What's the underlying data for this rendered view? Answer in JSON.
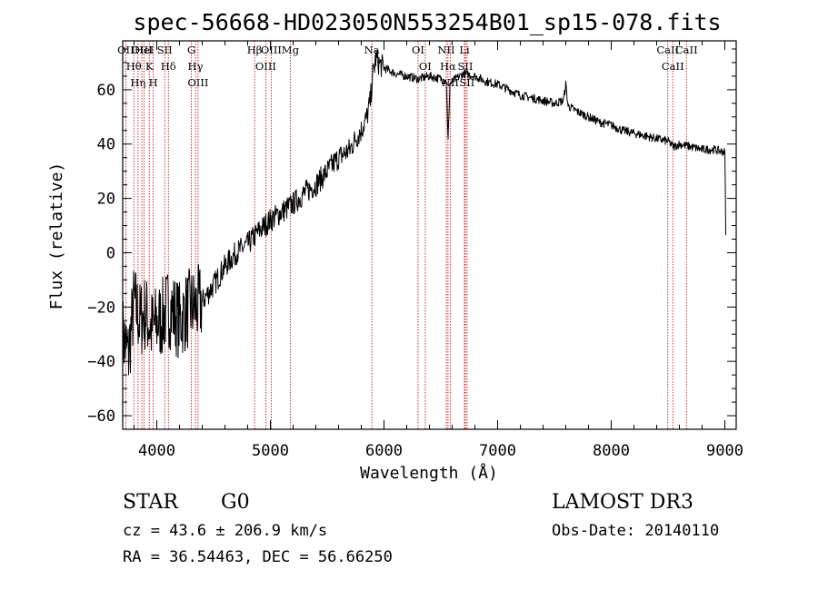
{
  "chart_data": {
    "type": "line",
    "title": "spec-56668-HD023050N553254B01_sp15-078.fits",
    "xlabel": "Wavelength (Å)",
    "ylabel": "Flux (relative)",
    "xlim": [
      3700,
      9100
    ],
    "ylim": [
      -65,
      78
    ],
    "x_ticks": [
      4000,
      5000,
      6000,
      7000,
      8000,
      9000
    ],
    "x_tick_labels": [
      "4000",
      "5000",
      "6000",
      "7000",
      "8000",
      "9000"
    ],
    "y_ticks": [
      -60,
      -40,
      -20,
      0,
      20,
      40,
      60
    ],
    "y_tick_labels": [
      "−60",
      "−40",
      "−20",
      "0",
      "20",
      "40",
      "60"
    ],
    "grid": false,
    "series": [
      {
        "name": "spectrum",
        "x": [
          3700,
          3750,
          3800,
          3850,
          3900,
          3950,
          4000,
          4050,
          4100,
          4150,
          4200,
          4250,
          4300,
          4350,
          4400,
          4500,
          4600,
          4700,
          4800,
          4900,
          5000,
          5100,
          5200,
          5300,
          5400,
          5500,
          5600,
          5700,
          5750,
          5800,
          5850,
          5880,
          5900,
          5930,
          5950,
          6000,
          6100,
          6200,
          6300,
          6400,
          6500,
          6550,
          6563,
          6580,
          6600,
          6700,
          6800,
          6900,
          7000,
          7100,
          7200,
          7300,
          7400,
          7500,
          7580,
          7600,
          7620,
          7700,
          7800,
          7900,
          8000,
          8100,
          8200,
          8300,
          8400,
          8500,
          8550,
          8600,
          8700,
          8800,
          8900,
          9000,
          9005,
          9010
        ],
        "y": [
          -30,
          -38,
          -18,
          -25,
          -22,
          -28,
          -26,
          -24,
          -20,
          -22,
          -25,
          -22,
          -20,
          -20,
          -18,
          -12,
          -5,
          0,
          3,
          8,
          12,
          15,
          18,
          22,
          25,
          30,
          35,
          38,
          42,
          45,
          50,
          56,
          65,
          72,
          70,
          68,
          66,
          65,
          64,
          65,
          64,
          63,
          40,
          62,
          63,
          66,
          65,
          63,
          62,
          60,
          58,
          57,
          56,
          55,
          56,
          62,
          54,
          52,
          50,
          48,
          47,
          45,
          44,
          43,
          42,
          41,
          39,
          40,
          39,
          38,
          38,
          37,
          20,
          0
        ]
      }
    ],
    "line_ids": [
      {
        "label": "Hθ",
        "wavelength": 3798
      },
      {
        "label": "OII",
        "wavelength": 3727
      },
      {
        "label": "OIII",
        "wavelength": 3869
      },
      {
        "label": "HeI",
        "wavelength": 3889
      },
      {
        "label": "Hη",
        "wavelength": 3835
      },
      {
        "label": "K",
        "wavelength": 3934
      },
      {
        "label": "H",
        "wavelength": 3969
      },
      {
        "label": "SII",
        "wavelength": 4070
      },
      {
        "label": "Hδ",
        "wavelength": 4102
      },
      {
        "label": "OIII",
        "wavelength": 4363
      },
      {
        "label": "Hγ",
        "wavelength": 4340
      },
      {
        "label": "G",
        "wavelength": 4305
      },
      {
        "label": "Hβ",
        "wavelength": 4861
      },
      {
        "label": "OIII",
        "wavelength": 4959
      },
      {
        "label": "OIII",
        "wavelength": 5007
      },
      {
        "label": "Mg",
        "wavelength": 5175
      },
      {
        "label": "Na",
        "wavelength": 5893
      },
      {
        "label": "OI",
        "wavelength": 6300
      },
      {
        "label": "OI",
        "wavelength": 6363
      },
      {
        "label": "NII",
        "wavelength": 6548
      },
      {
        "label": "Hα",
        "wavelength": 6563
      },
      {
        "label": "NII",
        "wavelength": 6583
      },
      {
        "label": "Li",
        "wavelength": 6708
      },
      {
        "label": "SII",
        "wavelength": 6716
      },
      {
        "label": "SII",
        "wavelength": 6731
      },
      {
        "label": "CaII",
        "wavelength": 8498
      },
      {
        "label": "CaII",
        "wavelength": 8542
      },
      {
        "label": "CaII",
        "wavelength": 8662
      }
    ]
  },
  "info": {
    "object_type": "STAR",
    "subclass": "G0",
    "survey": "LAMOST DR3",
    "cz": "cz = 43.6 ± 206.9 km/s",
    "obs_date": "Obs-Date: 20140110",
    "coords": "RA =  36.54463, DEC =  56.66250"
  },
  "colors": {
    "spectrum": "#000000",
    "line_markers": "#c00000",
    "frame": "#000000"
  }
}
